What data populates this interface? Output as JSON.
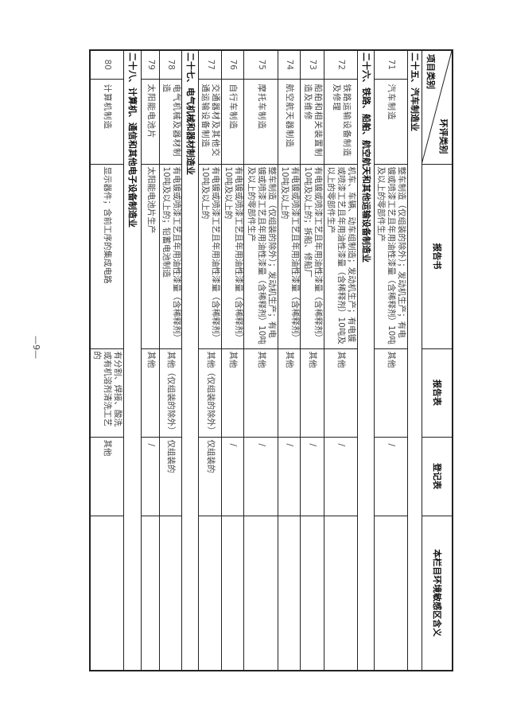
{
  "header": {
    "env_category": "环评类别",
    "project_category": "项目类别",
    "report_book": "报告书",
    "report_form": "报告表",
    "registration_form": "登记表",
    "sensitive_area": "本栏目环境敏感区含义"
  },
  "rows": [
    {
      "section": "二十五、汽车制造业"
    },
    {
      "num": "71",
      "name": "汽车制造",
      "book": "整车制造（仅组装的除外）；发动机生产；有电镀或喷漆工艺且年用油性漆量（含稀释剂）10吨及以上的零部件生产",
      "form": "其他",
      "reg": "/",
      "area": ""
    },
    {
      "section": "二十六、铁路、船舶、航空航天和其他运输设备制造业"
    },
    {
      "num": "72",
      "name": "铁路运输设备制造及修理",
      "book": "机车、车辆、动车组制造；发动机生产；有电镀或喷漆工艺且年用油性漆量（含稀释剂）10吨及以上的零部件生产",
      "form": "其他",
      "reg": "/",
      "area": ""
    },
    {
      "num": "73",
      "name": "船舶和相关装置制造及维修",
      "book": "有电镀或喷漆工艺且年用油性漆量（含稀释剂）10吨及以上的；拆船、修船厂",
      "form": "其他",
      "reg": "/",
      "area": ""
    },
    {
      "num": "74",
      "name": "航空航天器制造",
      "book": "有电镀或喷漆工艺且年用油性漆量（含稀释剂）10吨及以上的",
      "form": "其他",
      "reg": "/",
      "area": ""
    },
    {
      "num": "75",
      "name": "摩托车制造",
      "book": "整车制造（仅组装的除外）；发动机生产；有电镀或喷漆工艺且年用油性漆量（含稀释剂）10吨及以上的零部件生产",
      "form": "其他",
      "reg": "/",
      "area": ""
    },
    {
      "num": "76",
      "name": "自行车制造",
      "book": "有电镀或喷漆工艺且年用油性漆量（含稀释剂）10吨及以上的",
      "form": "其他",
      "reg": "/",
      "area": ""
    },
    {
      "num": "77",
      "name": "交通器材及其他交通运输设备制造",
      "book": "有电镀或喷漆工艺且年用油性漆量（含稀释剂）10吨及以上的",
      "form": "其他（仅组装的除外）",
      "reg": "仅组装的",
      "area": ""
    },
    {
      "section": "二十七、电气机械和器材制造业"
    },
    {
      "num": "78",
      "name": "电气机械及器材制造",
      "book": "有电镀或喷漆工艺且年用油性漆量（含稀释剂）10吨及以上的；铅蓄电池制造",
      "form": "其他（仅组装的除外）",
      "reg": "仅组装的",
      "area": ""
    },
    {
      "num": "79",
      "name": "太阳能电池片",
      "book": "太阳能电池片生产",
      "form": "其他",
      "reg": "/",
      "area": ""
    },
    {
      "section": "二十八、计算机、通信和其他电子设备制造业"
    },
    {
      "num": "80",
      "name": "计算机制造",
      "book": "显示器件；含前工序的集成电路",
      "form": "有分割、焊接、酸洗或有机溶剂清洗工艺的",
      "reg": "其他",
      "area": ""
    }
  ],
  "page_number": "—9—"
}
